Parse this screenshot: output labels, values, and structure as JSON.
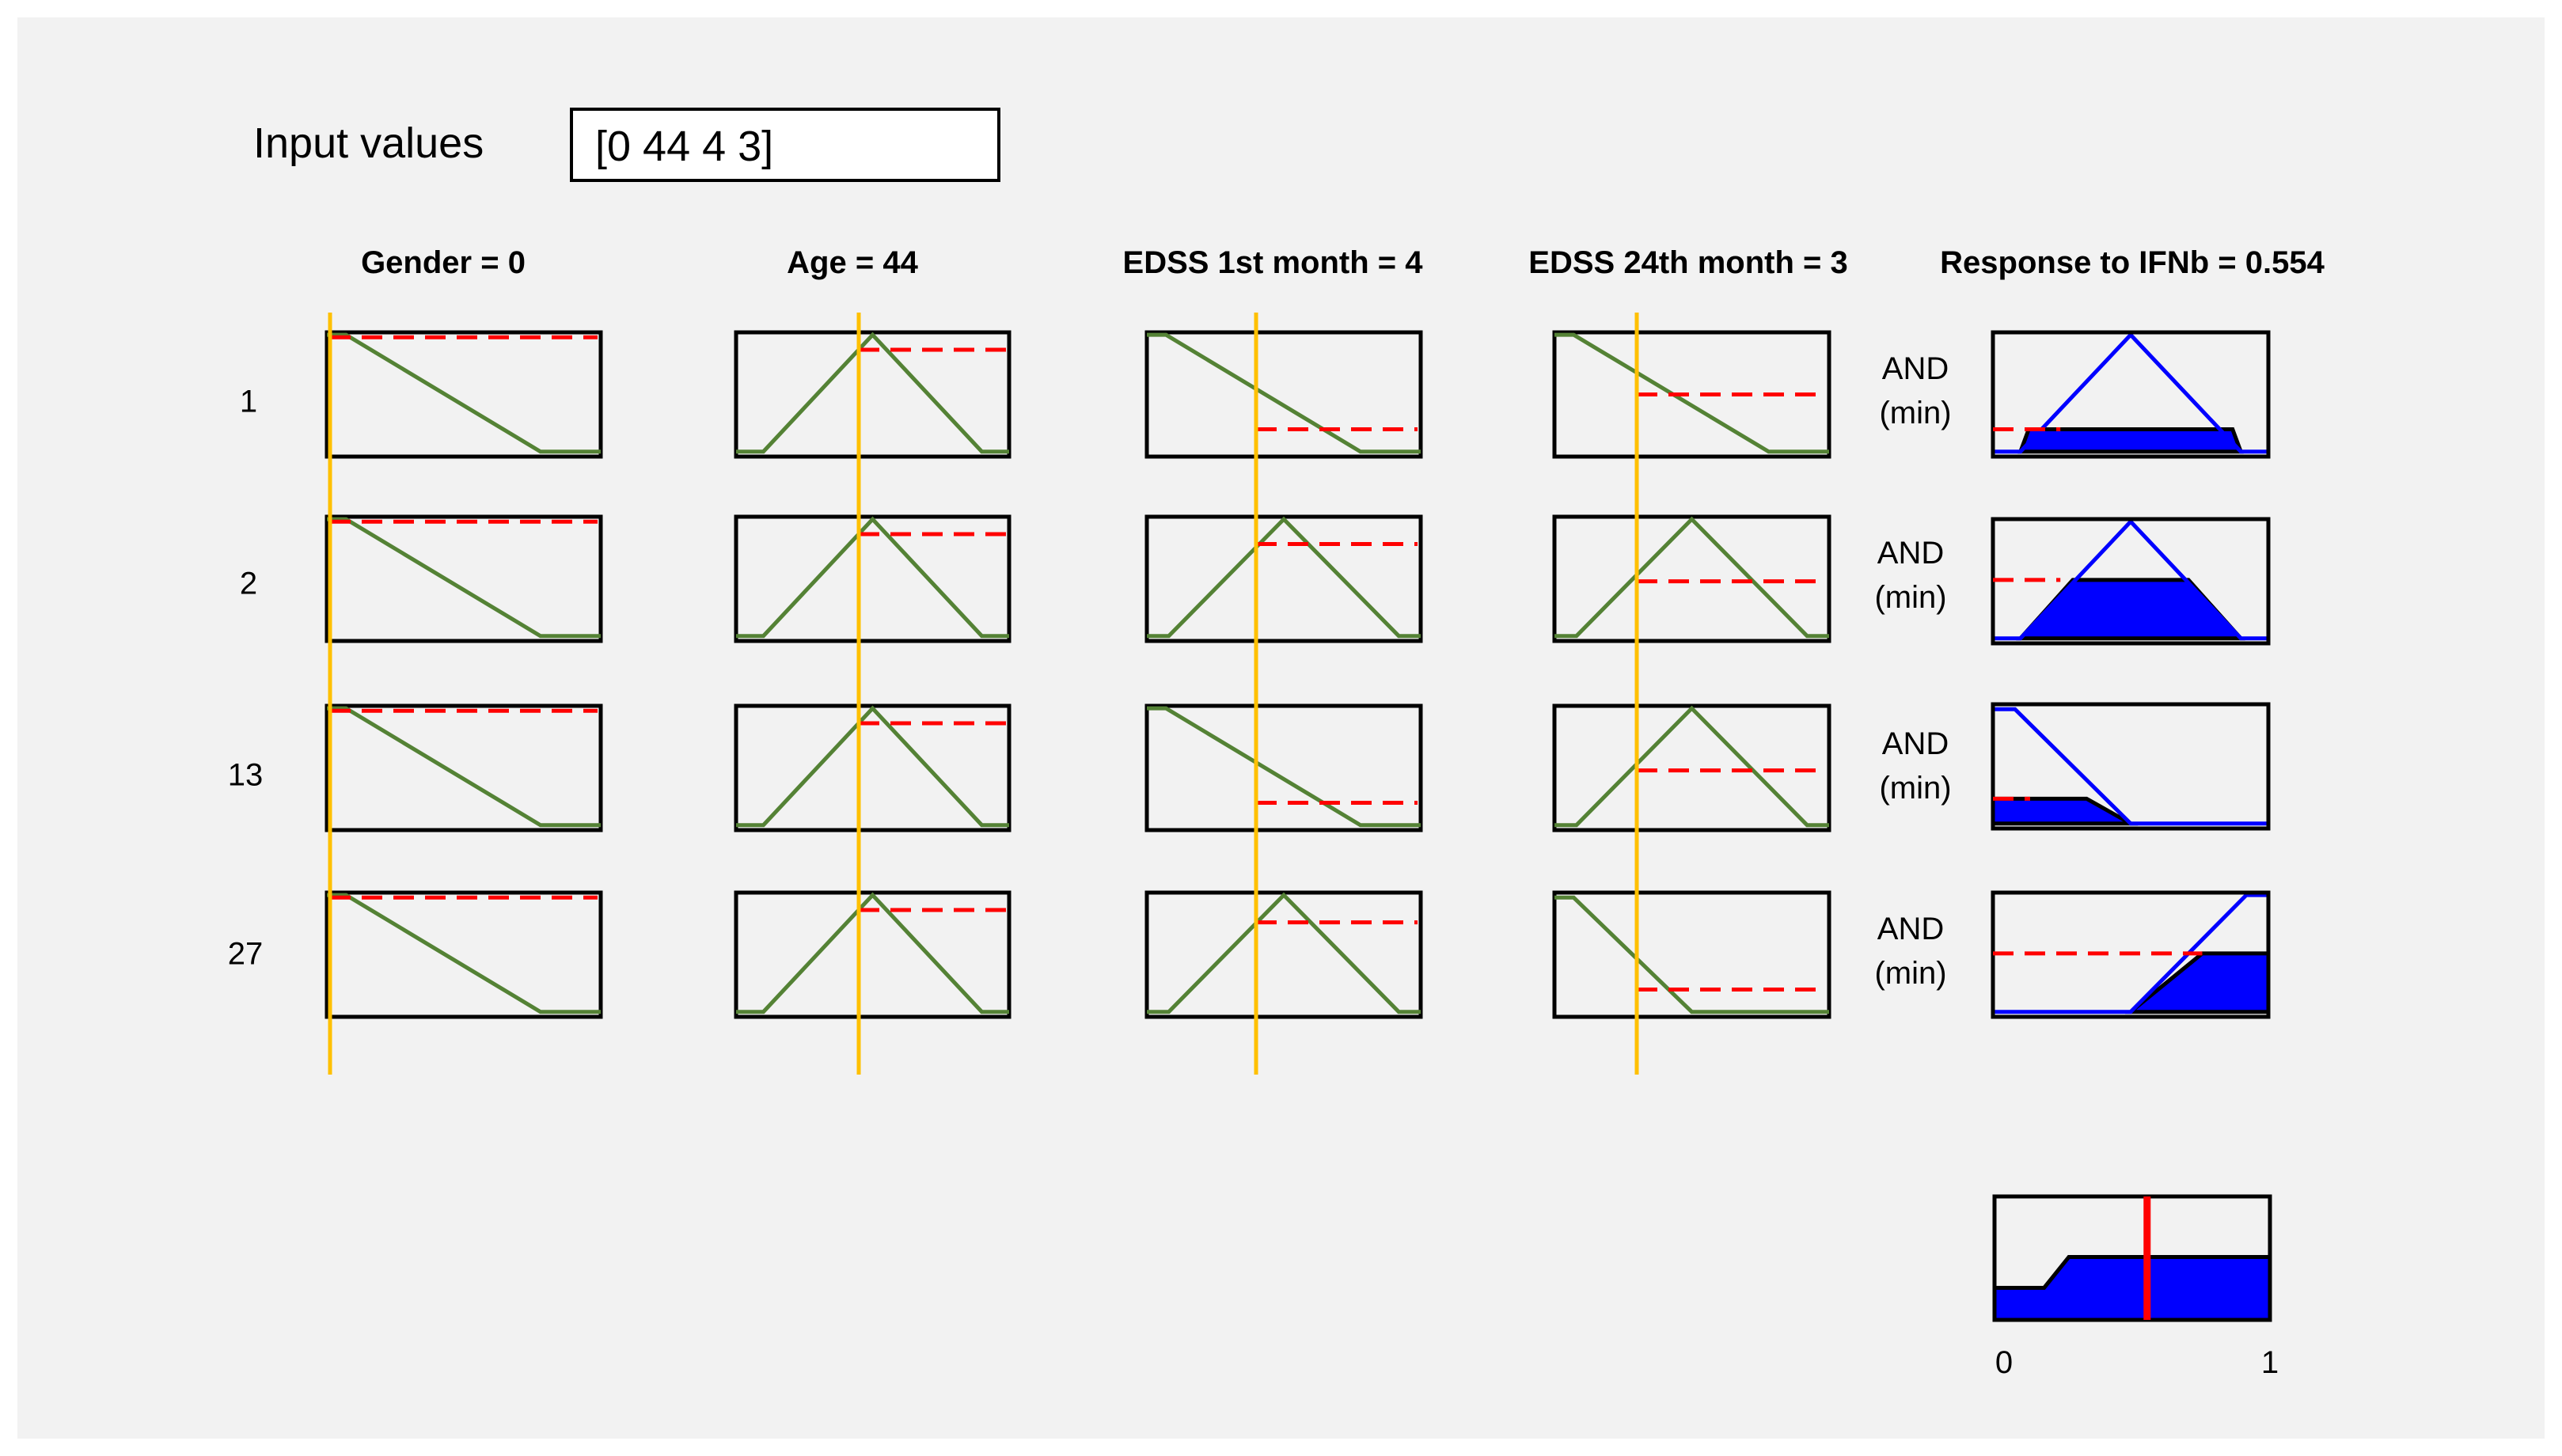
{
  "input": {
    "label": "Input values",
    "value": "[0 44 4 3]"
  },
  "columns": [
    {
      "title": "Gender = 0"
    },
    {
      "title": "Age = 44"
    },
    {
      "title": "EDSS 1st month = 4"
    },
    {
      "title": "EDSS 24th month = 3"
    },
    {
      "title": "Response to IFNb = 0.554"
    }
  ],
  "rules": [
    {
      "label": "1",
      "and_line1": "AND",
      "and_line2": "(min)"
    },
    {
      "label": "2",
      "and_line1": "AND",
      "and_line2": "(min)"
    },
    {
      "label": "13",
      "and_line1": "AND",
      "and_line2": "(min)"
    },
    {
      "label": "27",
      "and_line1": "AND",
      "and_line2": "(min)"
    }
  ],
  "input_values": [
    0,
    44,
    4,
    3
  ],
  "output_value": 0.554,
  "aggregate_axis": {
    "min_label": "0",
    "max_label": "1"
  },
  "colors": {
    "membership": "#548235",
    "input_line": "#ffc000",
    "firing_level": "#ff0000",
    "output_outline": "#0000ff",
    "output_fill": "#0000ff",
    "defuzz_line": "#ff0000"
  }
}
